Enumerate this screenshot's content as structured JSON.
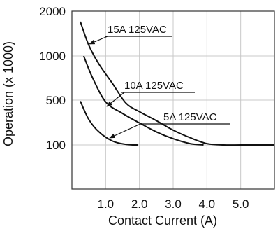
{
  "chart_data": {
    "type": "line",
    "xlabel": "Contact Current (A)",
    "ylabel": "Operation (x 1000)",
    "xlim": [
      0,
      6
    ],
    "x_ticks": [
      "1.0",
      "2.0",
      "3.0",
      "4.0",
      "5.0"
    ],
    "y_ticks": [
      "2000",
      "1000",
      "500",
      "100"
    ],
    "y_scale": "categorical-log-like (evenly spaced ticks)",
    "grid": true,
    "legend": "inline labels with arrows",
    "series": [
      {
        "name": "15A 125VAC",
        "x": [
          0.25,
          0.5,
          0.8,
          1.2,
          1.6,
          2.0,
          2.5,
          3.0,
          3.5,
          4.0,
          4.5,
          5.0,
          5.5,
          6.0
        ],
        "y": [
          1700,
          1180,
          880,
          650,
          450,
          330,
          240,
          170,
          130,
          105,
          100,
          100,
          100,
          100
        ]
      },
      {
        "name": "10A 125VAC",
        "x": [
          0.35,
          0.6,
          1.0,
          1.5,
          2.0,
          2.5,
          3.0,
          3.5,
          3.9
        ],
        "y": [
          1000,
          720,
          470,
          310,
          220,
          160,
          125,
          105,
          100
        ]
      },
      {
        "name": "5A 125VAC",
        "x": [
          0.25,
          0.5,
          0.8,
          1.2,
          1.6,
          1.95
        ],
        "y": [
          480,
          250,
          160,
          115,
          102,
          100
        ]
      }
    ]
  }
}
